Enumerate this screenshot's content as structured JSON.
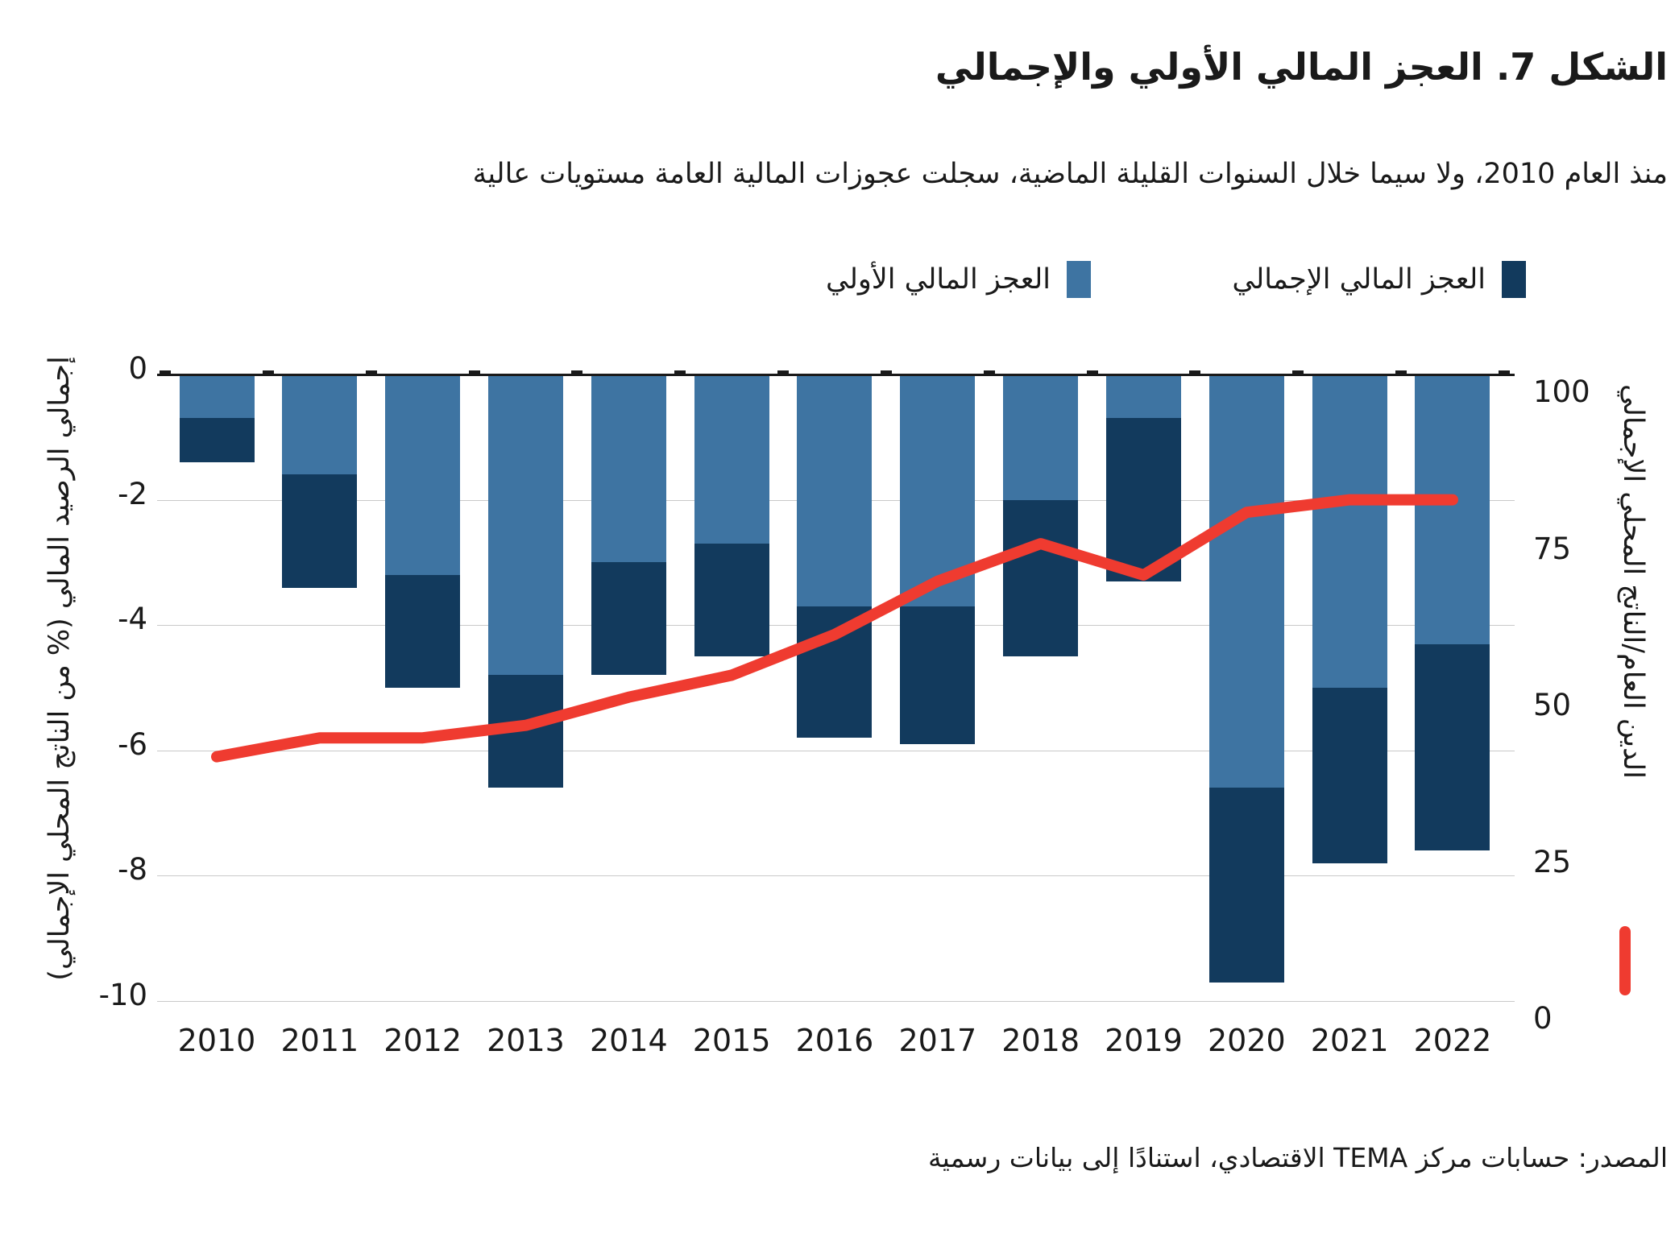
{
  "title": "الشكل 7. العجز المالي الأولي والإجمالي",
  "subtitle": "منذ العام 2010، ولا سيما خلال السنوات القليلة الماضية، سجلت عجوزات المالية العامة مستويات عالية",
  "legend": {
    "overall_label": "العجز المالي الإجمالي",
    "primary_label": "العجز المالي الأولي"
  },
  "axes": {
    "left_title": "إجمالي الرصيد المالي (% من الناتج المحلي الإجمالي)",
    "right_title": "الدين العام/الناتج المحلي الإجمالي",
    "left_ticks": [
      0,
      -2,
      -4,
      -6,
      -8,
      -10
    ],
    "right_ticks": [
      100,
      75,
      50,
      25,
      0
    ]
  },
  "source": "المصدر: حسابات مركز TEMA الاقتصادي، استنادًا إلى بيانات رسمية",
  "colors": {
    "primary_bar": "#3E74A2",
    "overall_bar": "#123A5D",
    "debt_line": "#EF3B30",
    "gridline": "#c9c9c9",
    "zero_line": "#1a1a1a",
    "text": "#1a1a1a"
  },
  "chart_data": {
    "type": "bar",
    "note": "stacked-overlap bars on left axis (% of GDP, negative) plus line on right axis (debt, % of GDP)",
    "categories": [
      "2010",
      "2011",
      "2012",
      "2013",
      "2014",
      "2015",
      "2016",
      "2017",
      "2018",
      "2019",
      "2020",
      "2021",
      "2022"
    ],
    "series": [
      {
        "name": "العجز المالي الأولي",
        "type": "bar",
        "axis": "left",
        "color_key": "primary_bar",
        "values": [
          -0.7,
          -1.6,
          -3.2,
          -4.8,
          -3.0,
          -2.7,
          -3.7,
          -3.7,
          -2.0,
          -0.7,
          -6.6,
          -5.0,
          -4.3
        ]
      },
      {
        "name": "العجز المالي الإجمالي",
        "type": "bar",
        "axis": "left",
        "color_key": "overall_bar",
        "values": [
          -1.4,
          -3.4,
          -5.0,
          -6.6,
          -4.8,
          -4.5,
          -5.8,
          -5.9,
          -4.5,
          -3.3,
          -9.7,
          -7.8,
          -7.6
        ]
      },
      {
        "name": "الدين العام/الناتج المحلي الإجمالي",
        "type": "line",
        "axis": "right",
        "color_key": "debt_line",
        "values": [
          39,
          42,
          42,
          44,
          48.5,
          52,
          58.5,
          67,
          73,
          68,
          78,
          80,
          80
        ]
      }
    ],
    "left_axis_range": [
      -10,
      0
    ],
    "right_axis_range": [
      0,
      100
    ],
    "grid": true,
    "legend_position": "top"
  }
}
